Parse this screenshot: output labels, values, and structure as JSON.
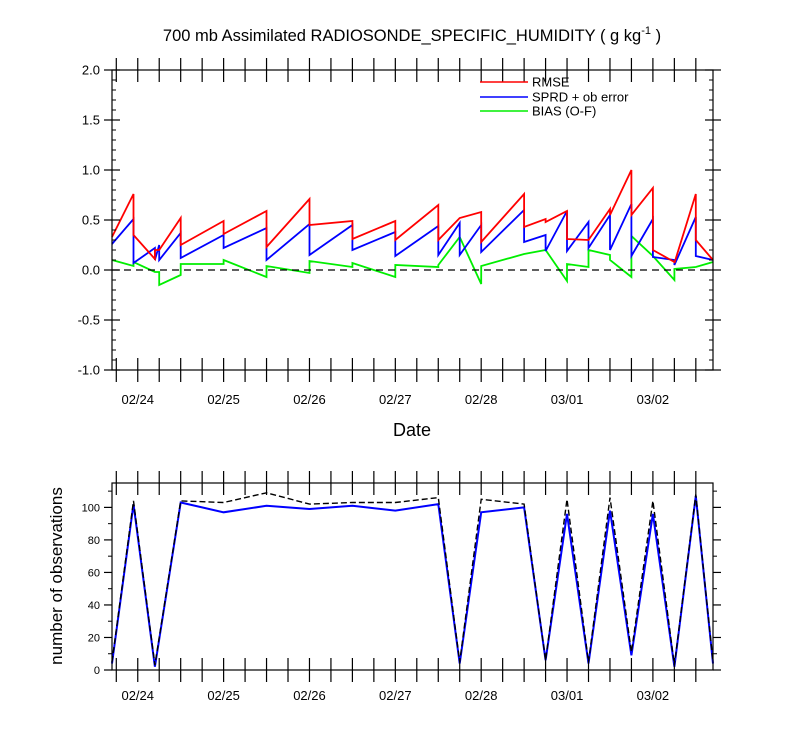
{
  "colors": {
    "rmse": "#ff0000",
    "sprd": "#0000ff",
    "bias": "#00ee00",
    "possible": "#000000",
    "axis": "#000000"
  },
  "chart_data": [
    {
      "type": "line",
      "title_main": "700 mb Assimilated RADIOSONDE_SPECIFIC_HUMIDITY ( g kg",
      "title_sup": "-1",
      "title_end": " )",
      "xlabel": "Date",
      "ylabel": "",
      "xlim": [
        23.95,
        30.95
      ],
      "ylim": [
        -1.0,
        2.0
      ],
      "y_ticks": [
        -1.0,
        -0.5,
        0.0,
        0.5,
        1.0,
        1.5,
        2.0
      ],
      "y_tick_labels": [
        "-1.0",
        "-0.5",
        "0.0",
        "0.5",
        "1.0",
        "1.5",
        "2.0"
      ],
      "x_tick_positions": [
        24.25,
        25.25,
        26.25,
        27.25,
        28.25,
        29.25,
        30.25
      ],
      "x_tick_labels": [
        "02/24",
        "02/25",
        "02/26",
        "02/27",
        "02/28",
        "03/01",
        "03/02"
      ],
      "zero_line": "dashed",
      "legend": [
        "RMSE",
        "SPRD + ob error",
        "BIAS (O-F)"
      ],
      "legend_position": "top-right",
      "segments": [
        {
          "x": [
            23.95,
            24.2
          ],
          "rmse": [
            0.33,
            0.76
          ],
          "sprd": [
            0.26,
            0.51
          ],
          "bias": [
            0.1,
            0.04
          ]
        },
        {
          "x": [
            24.2,
            24.45
          ],
          "rmse": [
            0.35,
            0.11
          ],
          "sprd": [
            0.07,
            0.22
          ],
          "bias": [
            0.08,
            -0.02
          ]
        },
        {
          "x": [
            24.45,
            24.5
          ],
          "rmse": [
            0.2,
            0.2
          ],
          "sprd": [
            0.1,
            0.25
          ],
          "bias": [
            -0.02,
            -0.02
          ]
        },
        {
          "x": [
            24.5,
            24.75
          ],
          "rmse": [
            0.2,
            0.52
          ],
          "sprd": [
            0.1,
            0.37
          ],
          "bias": [
            -0.15,
            -0.05
          ]
        },
        {
          "x": [
            24.75,
            25.25
          ],
          "rmse": [
            0.25,
            0.49
          ],
          "sprd": [
            0.12,
            0.35
          ],
          "bias": [
            0.06,
            0.06
          ]
        },
        {
          "x": [
            25.25,
            25.75
          ],
          "rmse": [
            0.36,
            0.59
          ],
          "sprd": [
            0.22,
            0.42
          ],
          "bias": [
            0.1,
            -0.07
          ]
        },
        {
          "x": [
            25.75,
            26.25
          ],
          "rmse": [
            0.23,
            0.71
          ],
          "sprd": [
            0.1,
            0.46
          ],
          "bias": [
            0.04,
            -0.03
          ]
        },
        {
          "x": [
            26.25,
            26.75
          ],
          "rmse": [
            0.45,
            0.49
          ],
          "sprd": [
            0.15,
            0.45
          ],
          "bias": [
            0.09,
            0.03
          ]
        },
        {
          "x": [
            26.75,
            27.25
          ],
          "rmse": [
            0.31,
            0.49
          ],
          "sprd": [
            0.2,
            0.38
          ],
          "bias": [
            0.07,
            -0.07
          ]
        },
        {
          "x": [
            27.25,
            27.75
          ],
          "rmse": [
            0.3,
            0.65
          ],
          "sprd": [
            0.14,
            0.44
          ],
          "bias": [
            0.05,
            0.03
          ]
        },
        {
          "x": [
            27.75,
            28.0
          ],
          "rmse": [
            0.3,
            0.52
          ],
          "sprd": [
            0.15,
            0.47
          ],
          "bias": [
            0.05,
            0.33
          ]
        },
        {
          "x": [
            28.0,
            28.25
          ],
          "rmse": [
            0.52,
            0.58
          ],
          "sprd": [
            0.15,
            0.45
          ],
          "bias": [
            0.33,
            -0.14
          ]
        },
        {
          "x": [
            28.25,
            28.75
          ],
          "rmse": [
            0.28,
            0.76
          ],
          "sprd": [
            0.18,
            0.6
          ],
          "bias": [
            0.04,
            0.16
          ]
        },
        {
          "x": [
            28.75,
            29.0
          ],
          "rmse": [
            0.43,
            0.51
          ],
          "sprd": [
            0.28,
            0.35
          ],
          "bias": [
            0.16,
            0.2
          ]
        },
        {
          "x": [
            29.0,
            29.25
          ],
          "rmse": [
            0.48,
            0.59
          ],
          "sprd": [
            0.19,
            0.59
          ],
          "bias": [
            0.2,
            -0.11
          ]
        },
        {
          "x": [
            29.25,
            29.5
          ],
          "rmse": [
            0.31,
            0.3
          ],
          "sprd": [
            0.19,
            0.48
          ],
          "bias": [
            0.06,
            0.03
          ]
        },
        {
          "x": [
            29.5,
            29.75
          ],
          "rmse": [
            0.3,
            0.61
          ],
          "sprd": [
            0.22,
            0.55
          ],
          "bias": [
            0.2,
            0.15
          ]
        },
        {
          "x": [
            29.75,
            30.0
          ],
          "rmse": [
            0.55,
            1.0
          ],
          "sprd": [
            0.2,
            0.66
          ],
          "bias": [
            0.1,
            -0.07
          ]
        },
        {
          "x": [
            30.0,
            30.25
          ],
          "rmse": [
            0.55,
            0.82
          ],
          "sprd": [
            0.14,
            0.51
          ],
          "bias": [
            0.34,
            0.14
          ]
        },
        {
          "x": [
            30.25,
            30.5
          ],
          "rmse": [
            0.2,
            0.08
          ],
          "sprd": [
            0.13,
            0.1
          ],
          "bias": [
            0.14,
            -0.1
          ]
        },
        {
          "x": [
            30.5,
            30.75
          ],
          "rmse": [
            0.07,
            0.76
          ],
          "sprd": [
            0.05,
            0.53
          ],
          "bias": [
            0.01,
            0.03
          ]
        },
        {
          "x": [
            30.75,
            30.95
          ],
          "rmse": [
            0.3,
            0.1
          ],
          "sprd": [
            0.14,
            0.1
          ],
          "bias": [
            0.03,
            0.08
          ]
        }
      ]
    },
    {
      "type": "line",
      "title": "",
      "xlabel": "",
      "ylabel": "number of observations",
      "xlim": [
        23.95,
        30.95
      ],
      "ylim": [
        0,
        115
      ],
      "y_ticks": [
        0,
        20,
        40,
        60,
        80,
        100
      ],
      "y_tick_labels": [
        "0",
        "20",
        "40",
        "60",
        "80",
        "100"
      ],
      "x_tick_positions": [
        24.25,
        25.25,
        26.25,
        27.25,
        28.25,
        29.25,
        30.25
      ],
      "x_tick_labels": [
        "02/24",
        "02/25",
        "02/26",
        "02/27",
        "02/28",
        "03/01",
        "03/02"
      ],
      "series": [
        {
          "name": "possible",
          "style": "dashed",
          "x": [
            23.95,
            24.2,
            24.45,
            24.75,
            25.25,
            25.75,
            26.25,
            26.75,
            27.25,
            27.75,
            28.0,
            28.25,
            28.75,
            29.0,
            29.25,
            29.5,
            29.75,
            30.0,
            30.25,
            30.5,
            30.75,
            30.95
          ],
          "values": [
            5,
            104,
            3,
            104,
            103,
            109,
            102,
            103,
            103,
            106,
            5,
            105,
            102,
            6,
            105,
            5,
            106,
            11,
            104,
            3,
            108,
            5
          ]
        },
        {
          "name": "assimilated",
          "style": "solid",
          "x": [
            23.95,
            24.2,
            24.45,
            24.75,
            25.25,
            25.75,
            26.25,
            26.75,
            27.25,
            27.75,
            28.0,
            28.25,
            28.75,
            29.0,
            29.25,
            29.5,
            29.75,
            30.0,
            30.25,
            30.5,
            30.75,
            30.95
          ],
          "values": [
            4,
            102,
            2,
            103,
            97,
            101,
            99,
            101,
            98,
            102,
            4,
            97,
            100,
            6,
            96,
            4,
            98,
            9,
            96,
            2,
            107,
            4
          ]
        }
      ]
    }
  ]
}
